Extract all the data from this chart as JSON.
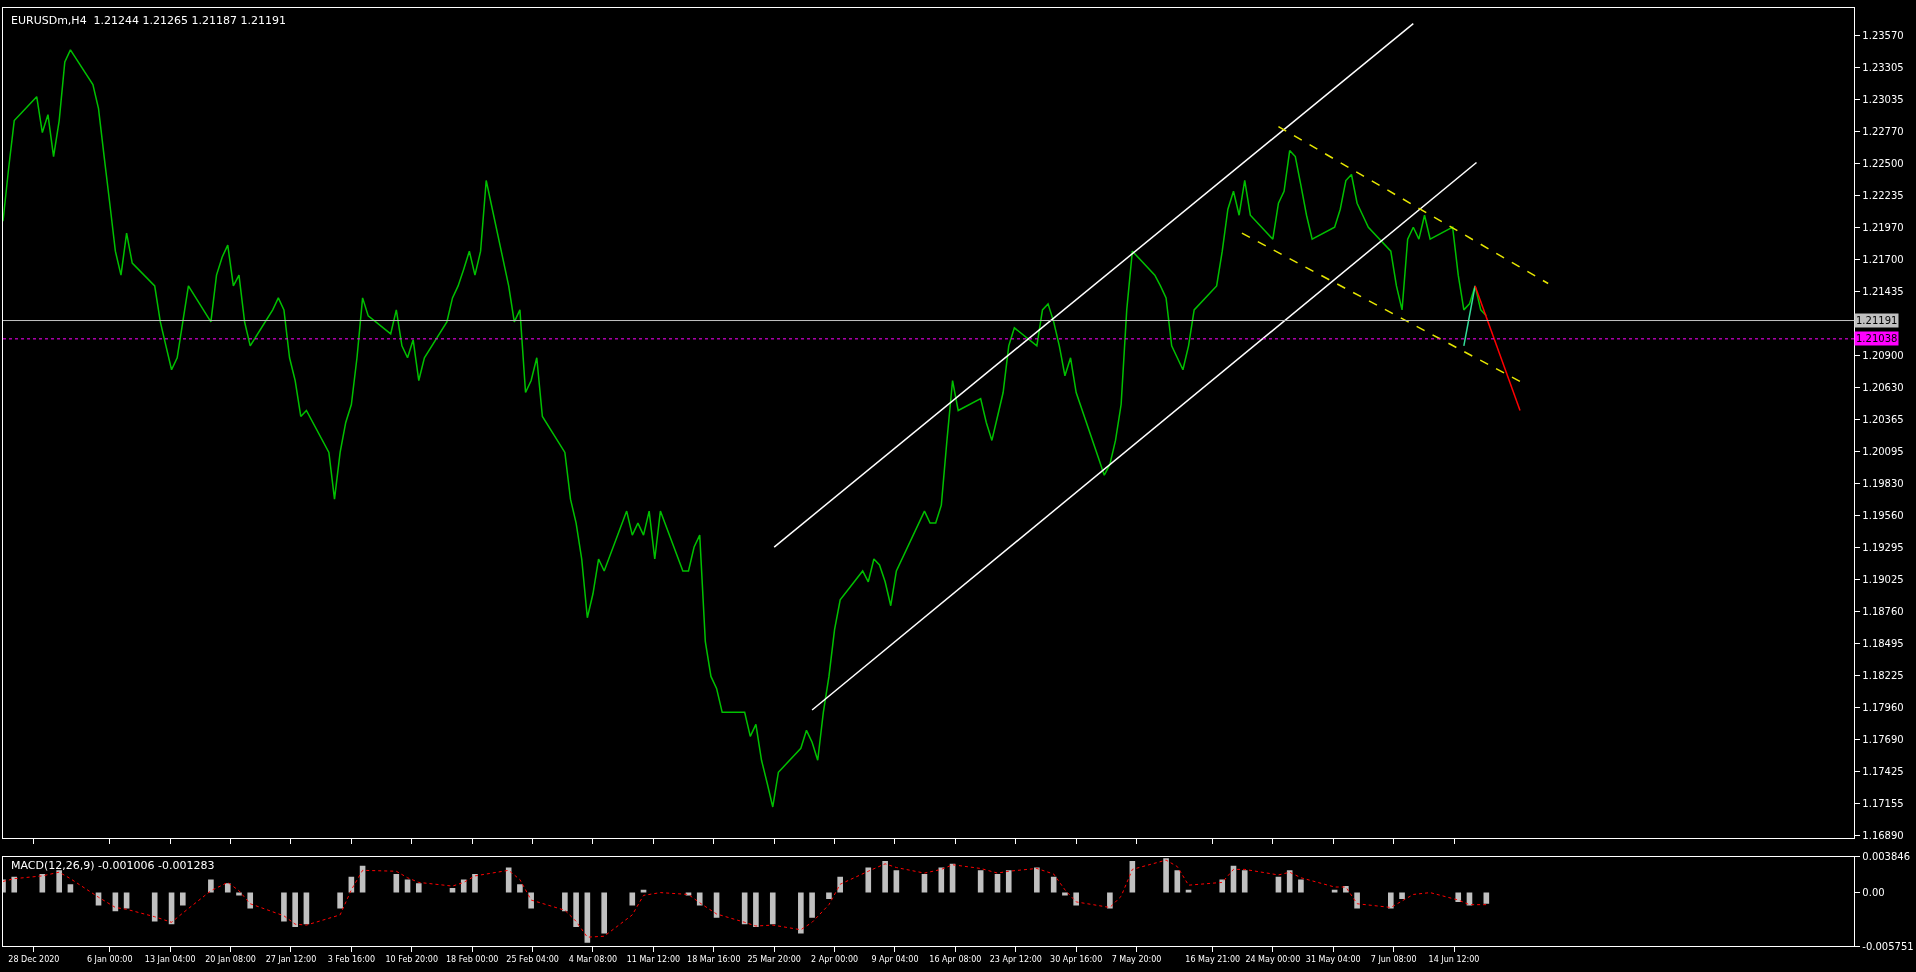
{
  "chart_data": [
    {
      "type": "line",
      "title": "EURUSDm,H4  1.21244 1.21265 1.21187 1.21191",
      "xlim": [
        "2020-12-24T08:00",
        "2021-08-01T00:00"
      ],
      "ylim": [
        1.1687,
        1.238
      ],
      "xticks": [
        {
          "value": "2020-12-28T00:00",
          "label": null
        },
        {
          "value": "2021-01-06T00:00",
          "label": null
        },
        {
          "value": "2021-01-13T04:00",
          "label": null
        },
        {
          "value": "2021-01-20T08:00",
          "label": null
        },
        {
          "value": "2021-01-27T12:00",
          "label": null
        },
        {
          "value": "2021-02-03T16:00",
          "label": null
        },
        {
          "value": "2021-02-10T20:00",
          "label": null
        },
        {
          "value": "2021-02-18T00:00",
          "label": null
        },
        {
          "value": "2021-02-25T04:00",
          "label": null
        },
        {
          "value": "2021-03-04T08:00",
          "label": null
        },
        {
          "value": "2021-03-11T12:00",
          "label": null
        },
        {
          "value": "2021-03-18T16:00",
          "label": null
        },
        {
          "value": "2021-03-25T20:00",
          "label": null
        },
        {
          "value": "2021-04-02T00:00",
          "label": null
        },
        {
          "value": "2021-04-09T04:00",
          "label": null
        },
        {
          "value": "2021-04-16T08:00",
          "label": null
        },
        {
          "value": "2021-04-23T12:00",
          "label": null
        },
        {
          "value": "2021-04-30T16:00",
          "label": null
        },
        {
          "value": "2021-05-07T20:00",
          "label": null
        },
        {
          "value": "2021-05-16T21:00",
          "label": null
        },
        {
          "value": "2021-05-24T00:00",
          "label": null
        },
        {
          "value": "2021-05-31T04:00",
          "label": null
        },
        {
          "value": "2021-06-07T08:00",
          "label": null
        },
        {
          "value": "2021-06-14T12:00",
          "label": null
        }
      ],
      "yticks": [
        {
          "value": 1.1689,
          "label": "1.16890"
        },
        {
          "value": 1.17155,
          "label": "1.17155"
        },
        {
          "value": 1.17425,
          "label": "1.17425"
        },
        {
          "value": 1.1769,
          "label": "1.17690"
        },
        {
          "value": 1.1796,
          "label": "1.17960"
        },
        {
          "value": 1.18225,
          "label": "1.18225"
        },
        {
          "value": 1.18495,
          "label": "1.18495"
        },
        {
          "value": 1.1876,
          "label": "1.18760"
        },
        {
          "value": 1.19025,
          "label": "1.19025"
        },
        {
          "value": 1.19295,
          "label": "1.19295"
        },
        {
          "value": 1.1956,
          "label": "1.19560"
        },
        {
          "value": 1.1983,
          "label": "1.19830"
        },
        {
          "value": 1.20095,
          "label": "1.20095"
        },
        {
          "value": 1.20365,
          "label": "1.20365"
        },
        {
          "value": 1.2063,
          "label": "1.20630"
        },
        {
          "value": 1.209,
          "label": "1.20900"
        },
        {
          "value": 1.21435,
          "label": "1.21435"
        },
        {
          "value": 1.217,
          "label": "1.21700"
        },
        {
          "value": 1.2197,
          "label": "1.21970"
        },
        {
          "value": 1.22235,
          "label": "1.22235"
        },
        {
          "value": 1.225,
          "label": "1.22500"
        },
        {
          "value": 1.2277,
          "label": "1.22770"
        },
        {
          "value": 1.23035,
          "label": "1.23035"
        },
        {
          "value": 1.23305,
          "label": "1.23305"
        },
        {
          "value": 1.2357,
          "label": "1.23570"
        }
      ],
      "tick_labels": "y",
      "grid": false,
      "series": [
        {
          "color": "#00c000",
          "line_style": "solid",
          "x": [
            "2020-12-24T08:00",
            "2020-12-25T00:00",
            "2020-12-25T16:00",
            "2020-12-28T08:00",
            "2020-12-29T00:00",
            "2020-12-29T16:00",
            "2020-12-30T08:00",
            "2020-12-31T00:00",
            "2020-12-31T16:00",
            "2021-01-01T08:00",
            "2021-01-04T00:00",
            "2021-01-04T16:00",
            "2021-01-05T08:00",
            "2021-01-06T00:00",
            "2021-01-06T16:00",
            "2021-01-07T08:00",
            "2021-01-08T00:00",
            "2021-01-08T16:00",
            "2021-01-11T08:00",
            "2021-01-12T00:00",
            "2021-01-12T16:00",
            "2021-01-13T08:00",
            "2021-01-14T00:00",
            "2021-01-14T16:00",
            "2021-01-15T08:00",
            "2021-01-18T00:00",
            "2021-01-18T16:00",
            "2021-01-19T08:00",
            "2021-01-20T00:00",
            "2021-01-20T16:00",
            "2021-01-21T08:00",
            "2021-01-22T00:00",
            "2021-01-22T16:00",
            "2021-01-25T08:00",
            "2021-01-26T00:00",
            "2021-01-26T16:00",
            "2021-01-27T08:00",
            "2021-01-28T00:00",
            "2021-01-28T16:00",
            "2021-01-29T08:00",
            "2021-02-01T00:00",
            "2021-02-01T16:00",
            "2021-02-02T08:00",
            "2021-02-03T00:00",
            "2021-02-03T16:00",
            "2021-02-04T08:00",
            "2021-02-05T00:00",
            "2021-02-05T16:00",
            "2021-02-08T08:00",
            "2021-02-09T00:00",
            "2021-02-09T16:00",
            "2021-02-10T08:00",
            "2021-02-11T00:00",
            "2021-02-11T16:00",
            "2021-02-12T08:00",
            "2021-02-15T00:00",
            "2021-02-15T16:00",
            "2021-02-16T08:00",
            "2021-02-17T00:00",
            "2021-02-17T16:00",
            "2021-02-18T08:00",
            "2021-02-19T00:00",
            "2021-02-19T16:00",
            "2021-02-22T08:00",
            "2021-02-23T00:00",
            "2021-02-23T16:00",
            "2021-02-24T08:00",
            "2021-02-25T00:00",
            "2021-02-25T16:00",
            "2021-02-26T08:00",
            "2021-03-01T00:00",
            "2021-03-01T16:00",
            "2021-03-02T08:00",
            "2021-03-03T00:00",
            "2021-03-03T16:00",
            "2021-03-04T08:00",
            "2021-03-05T00:00",
            "2021-03-05T16:00",
            "2021-03-08T08:00",
            "2021-03-09T00:00",
            "2021-03-09T16:00",
            "2021-03-10T08:00",
            "2021-03-11T00:00",
            "2021-03-11T16:00",
            "2021-03-12T08:00",
            "2021-03-15T00:00",
            "2021-03-15T16:00",
            "2021-03-16T08:00",
            "2021-03-17T00:00",
            "2021-03-17T16:00",
            "2021-03-18T08:00",
            "2021-03-19T00:00",
            "2021-03-19T16:00",
            "2021-03-22T08:00",
            "2021-03-23T00:00",
            "2021-03-23T16:00",
            "2021-03-24T08:00",
            "2021-03-25T00:00",
            "2021-03-25T16:00",
            "2021-03-26T08:00",
            "2021-03-29T00:00",
            "2021-03-29T16:00",
            "2021-03-30T08:00",
            "2021-03-31T00:00",
            "2021-03-31T16:00",
            "2021-04-01T08:00",
            "2021-04-02T00:00",
            "2021-04-02T16:00",
            "2021-04-05T08:00",
            "2021-04-06T00:00",
            "2021-04-06T16:00",
            "2021-04-07T08:00",
            "2021-04-08T00:00",
            "2021-04-08T16:00",
            "2021-04-09T08:00",
            "2021-04-12T00:00",
            "2021-04-12T16:00",
            "2021-04-13T08:00",
            "2021-04-14T00:00",
            "2021-04-14T16:00",
            "2021-04-15T08:00",
            "2021-04-16T00:00",
            "2021-04-16T16:00",
            "2021-04-19T08:00",
            "2021-04-20T00:00",
            "2021-04-20T16:00",
            "2021-04-21T08:00",
            "2021-04-22T00:00",
            "2021-04-22T16:00",
            "2021-04-23T08:00",
            "2021-04-26T00:00",
            "2021-04-26T16:00",
            "2021-04-27T08:00",
            "2021-04-28T00:00",
            "2021-04-28T16:00",
            "2021-04-29T08:00",
            "2021-04-30T00:00",
            "2021-04-30T16:00",
            "2021-05-03T08:00",
            "2021-05-04T00:00",
            "2021-05-04T16:00",
            "2021-05-05T08:00",
            "2021-05-06T00:00",
            "2021-05-06T16:00",
            "2021-05-07T08:00",
            "2021-05-10T00:00",
            "2021-05-10T16:00",
            "2021-05-11T08:00",
            "2021-05-12T00:00",
            "2021-05-12T16:00",
            "2021-05-13T08:00",
            "2021-05-14T00:00",
            "2021-05-14T16:00",
            "2021-05-17T08:00",
            "2021-05-18T00:00",
            "2021-05-18T16:00",
            "2021-05-19T08:00",
            "2021-05-20T00:00",
            "2021-05-20T16:00",
            "2021-05-21T08:00",
            "2021-05-24T00:00",
            "2021-05-24T16:00",
            "2021-05-25T08:00",
            "2021-05-26T00:00",
            "2021-05-26T16:00",
            "2021-05-27T08:00",
            "2021-05-28T00:00",
            "2021-05-28T16:00",
            "2021-05-31T08:00",
            "2021-06-01T00:00",
            "2021-06-01T16:00",
            "2021-06-02T08:00",
            "2021-06-03T00:00",
            "2021-06-03T16:00",
            "2021-06-04T08:00",
            "2021-06-07T00:00",
            "2021-06-07T16:00",
            "2021-06-08T08:00",
            "2021-06-09T00:00",
            "2021-06-09T16:00",
            "2021-06-10T08:00",
            "2021-06-11T00:00",
            "2021-06-11T16:00",
            "2021-06-14T08:00",
            "2021-06-15T00:00",
            "2021-06-15T16:00",
            "2021-06-16T08:00",
            "2021-06-17T00:00",
            "2021-06-17T16:00",
            "2021-06-18T08:00"
          ],
          "values": [
            1.2202,
            1.2246,
            1.2286,
            1.2306,
            1.2276,
            1.2291,
            1.2256,
            1.2286,
            1.2335,
            1.2345,
            1.2316,
            1.2296,
            1.2256,
            1.2217,
            1.2177,
            1.2157,
            1.2192,
            1.2167,
            1.2148,
            1.2118,
            1.2098,
            1.2078,
            1.2088,
            1.2118,
            1.2148,
            1.2118,
            1.2157,
            1.2172,
            1.2182,
            1.2148,
            1.2157,
            1.2118,
            1.2098,
            1.2128,
            1.2138,
            1.2128,
            1.2088,
            1.2069,
            1.2039,
            1.2044,
            1.2009,
            1.197,
            1.2009,
            1.2034,
            1.2049,
            1.2088,
            1.2138,
            1.2123,
            1.2108,
            1.2128,
            1.2098,
            1.2088,
            1.2103,
            1.2069,
            1.2088,
            1.2118,
            1.2138,
            1.2148,
            1.2162,
            1.2177,
            1.2157,
            1.2177,
            1.2236,
            1.2148,
            1.2118,
            1.2128,
            1.2059,
            1.2069,
            1.2088,
            1.2039,
            1.2009,
            1.197,
            1.195,
            1.192,
            1.1871,
            1.1891,
            1.192,
            1.191,
            1.196,
            1.194,
            1.195,
            1.194,
            1.196,
            1.192,
            1.196,
            1.191,
            1.191,
            1.193,
            1.194,
            1.1851,
            1.1822,
            1.1812,
            1.1792,
            1.1792,
            1.1772,
            1.1782,
            1.1752,
            1.1733,
            1.1713,
            1.1742,
            1.1762,
            1.1777,
            1.1767,
            1.1752,
            1.1792,
            1.1822,
            1.1861,
            1.1886,
            1.191,
            1.1901,
            1.192,
            1.1915,
            1.1901,
            1.1881,
            1.191,
            1.195,
            1.196,
            1.195,
            1.195,
            1.1965,
            1.2019,
            1.2069,
            1.2044,
            1.2054,
            1.2034,
            1.2019,
            1.2039,
            1.2059,
            1.2098,
            1.2113,
            1.2098,
            1.2128,
            1.2133,
            1.2118,
            1.2098,
            1.2073,
            1.2088,
            1.2059,
            1.2004,
            1.199,
            1.1999,
            1.2019,
            1.2049,
            1.2128,
            1.2177,
            1.2157,
            1.2148,
            1.2138,
            1.2098,
            1.2088,
            1.2078,
            1.2098,
            1.2128,
            1.2148,
            1.2177,
            1.2212,
            1.2227,
            1.2207,
            1.2236,
            1.2207,
            1.2187,
            1.2217,
            1.2227,
            1.2261,
            1.2256,
            1.2232,
            1.2207,
            1.2187,
            1.2197,
            1.2212,
            1.2236,
            1.2241,
            1.2217,
            1.2207,
            1.2197,
            1.2177,
            1.2148,
            1.2128,
            1.2187,
            1.2197,
            1.2187,
            1.2207,
            1.2187,
            1.2197,
            1.2157,
            1.2128,
            1.2133,
            1.2148,
            1.2128,
            1.2123
          ]
        },
        {
          "color": "#ffffff",
          "line_style": "solid",
          "x": [
            "2021-03-25T20:00",
            "2021-06-09T16:00"
          ],
          "values": [
            1.193,
            1.2367
          ]
        },
        {
          "color": "#ffffff",
          "line_style": "solid",
          "x": [
            "2021-03-30T08:00",
            "2021-06-17T04:00"
          ],
          "values": [
            1.1794,
            1.2251
          ]
        },
        {
          "color": "#e6e600",
          "line_style": "dashed",
          "x": [
            "2021-05-24T16:00",
            "2021-06-25T16:00"
          ],
          "values": [
            1.2281,
            1.215
          ]
        },
        {
          "color": "#e6e600",
          "line_style": "dashed",
          "x": [
            "2021-05-20T08:00",
            "2021-06-22T16:00"
          ],
          "values": [
            1.2192,
            1.2067
          ]
        },
        {
          "color": "#33dd99",
          "line_style": "solid",
          "x": [
            "2021-06-15T16:00",
            "2021-06-17T00:00"
          ],
          "values": [
            1.2098,
            1.2148
          ]
        },
        {
          "color": "#ff0000",
          "line_style": "solid",
          "x": [
            "2021-06-17T00:00",
            "2021-06-22T08:00"
          ],
          "values": [
            1.2148,
            1.2044
          ]
        }
      ],
      "ref_lines": [
        {
          "axis": "y",
          "value": 1.21191,
          "label": "1.21191",
          "color": "#c0c0c0",
          "line_style": "solid"
        },
        {
          "axis": "y",
          "value": 1.21038,
          "label": "1.21038",
          "color": "#ff00ff",
          "line_style": "dotted"
        }
      ]
    },
    {
      "type": "bar",
      "title": "MACD(12,26,9) -0.001006 -0.001283",
      "xlim": [
        "2020-12-24T08:00",
        "2021-08-01T00:00"
      ],
      "ylim": [
        -0.005751,
        0.003846
      ],
      "yticks": [
        -0.005751,
        {
          "value": 0,
          "label": "0.00"
        },
        0.003846
      ],
      "xticks": [
        {
          "value": "2020-12-28T00:00",
          "label": "28 Dec 2020"
        },
        {
          "value": "2021-01-06T00:00",
          "label": "6 Jan 00:00"
        },
        {
          "value": "2021-01-13T04:00",
          "label": "13 Jan 04:00"
        },
        {
          "value": "2021-01-20T08:00",
          "label": "20 Jan 08:00"
        },
        {
          "value": "2021-01-27T12:00",
          "label": "27 Jan 12:00"
        },
        {
          "value": "2021-02-03T16:00",
          "label": "3 Feb 16:00"
        },
        {
          "value": "2021-02-10T20:00",
          "label": "10 Feb 20:00"
        },
        {
          "value": "2021-02-18T00:00",
          "label": "18 Feb 00:00"
        },
        {
          "value": "2021-02-25T04:00",
          "label": "25 Feb 04:00"
        },
        {
          "value": "2021-03-04T08:00",
          "label": "4 Mar 08:00"
        },
        {
          "value": "2021-03-11T12:00",
          "label": "11 Mar 12:00"
        },
        {
          "value": "2021-03-18T16:00",
          "label": "18 Mar 16:00"
        },
        {
          "value": "2021-03-25T20:00",
          "label": "25 Mar 20:00"
        },
        {
          "value": "2021-04-02T00:00",
          "label": "2 Apr 00:00"
        },
        {
          "value": "2021-04-09T04:00",
          "label": "9 Apr 04:00"
        },
        {
          "value": "2021-04-16T08:00",
          "label": "16 Apr 08:00"
        },
        {
          "value": "2021-04-23T12:00",
          "label": "23 Apr 12:00"
        },
        {
          "value": "2021-04-30T16:00",
          "label": "30 Apr 16:00"
        },
        {
          "value": "2021-05-07T20:00",
          "label": "7 May 20:00"
        },
        {
          "value": "2021-05-16T21:00",
          "label": "16 May 21:00"
        },
        {
          "value": "2021-05-24T00:00",
          "label": "24 May 00:00"
        },
        {
          "value": "2021-05-31T04:00",
          "label": "31 May 04:00"
        },
        {
          "value": "2021-06-07T08:00",
          "label": "7 Jun 08:00"
        },
        {
          "value": "2021-06-14T12:00",
          "label": "14 Jun 12:00"
        }
      ],
      "grid": false,
      "x": [
        "2020-12-24T08:00",
        "2020-12-25T16:00",
        "2020-12-29T00:00",
        "2020-12-31T00:00",
        "2021-01-01T08:00",
        "2021-01-04T16:00",
        "2021-01-06T16:00",
        "2021-01-08T00:00",
        "2021-01-11T08:00",
        "2021-01-13T08:00",
        "2021-01-14T16:00",
        "2021-01-18T00:00",
        "2021-01-20T00:00",
        "2021-01-21T08:00",
        "2021-01-22T16:00",
        "2021-01-26T16:00",
        "2021-01-28T00:00",
        "2021-01-29T08:00",
        "2021-02-02T08:00",
        "2021-02-03T16:00",
        "2021-02-05T00:00",
        "2021-02-09T00:00",
        "2021-02-10T08:00",
        "2021-02-11T16:00",
        "2021-02-15T16:00",
        "2021-02-17T00:00",
        "2021-02-18T08:00",
        "2021-02-22T08:00",
        "2021-02-23T16:00",
        "2021-02-25T00:00",
        "2021-03-01T00:00",
        "2021-03-02T08:00",
        "2021-03-03T16:00",
        "2021-03-05T16:00",
        "2021-03-09T00:00",
        "2021-03-10T08:00",
        "2021-03-12T08:00",
        "2021-03-15T16:00",
        "2021-03-17T00:00",
        "2021-03-19T00:00",
        "2021-03-22T08:00",
        "2021-03-23T16:00",
        "2021-03-25T16:00",
        "2021-03-29T00:00",
        "2021-03-30T08:00",
        "2021-04-01T08:00",
        "2021-04-02T16:00",
        "2021-04-06T00:00",
        "2021-04-08T00:00",
        "2021-04-09T08:00",
        "2021-04-12T16:00",
        "2021-04-14T16:00",
        "2021-04-16T00:00",
        "2021-04-19T08:00",
        "2021-04-21T08:00",
        "2021-04-22T16:00",
        "2021-04-26T00:00",
        "2021-04-28T00:00",
        "2021-04-29T08:00",
        "2021-04-30T16:00",
        "2021-05-04T16:00",
        "2021-05-06T00:00",
        "2021-05-07T08:00",
        "2021-05-11T08:00",
        "2021-05-12T16:00",
        "2021-05-14T00:00",
        "2021-05-18T00:00",
        "2021-05-19T08:00",
        "2021-05-20T16:00",
        "2021-05-24T16:00",
        "2021-05-26T00:00",
        "2021-05-27T08:00",
        "2021-05-31T08:00",
        "2021-06-01T16:00",
        "2021-06-03T00:00",
        "2021-06-07T00:00",
        "2021-06-08T08:00",
        "2021-06-09T16:00",
        "2021-06-11T16:00",
        "2021-06-15T00:00",
        "2021-06-16T08:00",
        "2021-06-18T08:00"
      ],
      "series": [
        {
          "type": "bar",
          "color": "#c0c0c0",
          "values": [
            0.0014,
            0.0017,
            0.002,
            0.0024,
            0.0009,
            -0.0014,
            -0.002,
            -0.0017,
            -0.0031,
            -0.0034,
            -0.0014,
            0.0014,
            0.001,
            -0.0003,
            -0.0017,
            -0.0031,
            -0.0037,
            -0.0034,
            -0.0017,
            0.0017,
            0.0029,
            0.002,
            0.0014,
            0.001,
            0.0005,
            0.0014,
            0.002,
            0.0027,
            0.0009,
            -0.0017,
            -0.002,
            -0.0037,
            -0.0054,
            -0.0044,
            -0.0014,
            0.0003,
            0,
            -0.0003,
            -0.0014,
            -0.0027,
            -0.0034,
            -0.0037,
            -0.0034,
            -0.0044,
            -0.0027,
            -0.0007,
            0.0017,
            0.0027,
            0.0034,
            0.0024,
            0.002,
            0.0027,
            0.0031,
            0.0024,
            0.002,
            0.0024,
            0.0027,
            0.0017,
            -0.0003,
            -0.0014,
            -0.0017,
            0,
            0.0034,
            0.0037,
            0.0024,
            0.0003,
            0.0014,
            0.0029,
            0.0024,
            0.0017,
            0.0024,
            0.0014,
            0.0003,
            0.0007,
            -0.0017,
            -0.0017,
            -0.0007,
            0,
            0,
            -0.001,
            -0.0014,
            -0.0012
          ]
        },
        {
          "type": "line",
          "color": "#ff0000",
          "line_style": "dotted",
          "values": [
            0.0012,
            0.0015,
            0.0018,
            0.0022,
            0.0015,
            -0.0005,
            -0.0016,
            -0.0018,
            -0.0026,
            -0.0032,
            -0.0022,
            0.0002,
            0.0011,
            0.0002,
            -0.0012,
            -0.0025,
            -0.0034,
            -0.0035,
            -0.0024,
            0.0003,
            0.0024,
            0.0023,
            0.0016,
            0.0011,
            0.0007,
            0.0011,
            0.0018,
            0.0024,
            0.0014,
            -0.0008,
            -0.0019,
            -0.0031,
            -0.0048,
            -0.0047,
            -0.0024,
            -0.0003,
            0,
            -0.0002,
            -0.0011,
            -0.0023,
            -0.0032,
            -0.0036,
            -0.0035,
            -0.004,
            -0.0032,
            -0.0013,
            0.0009,
            0.0023,
            0.0031,
            0.0027,
            0.0021,
            0.0025,
            0.003,
            0.0026,
            0.0021,
            0.0023,
            0.0026,
            0.002,
            0.0003,
            -0.001,
            -0.0016,
            -0.0004,
            0.0025,
            0.0035,
            0.0028,
            0.0008,
            0.0011,
            0.0025,
            0.0025,
            0.0019,
            0.0022,
            0.0016,
            0.0006,
            0.0006,
            -0.0012,
            -0.0016,
            -0.0009,
            -0.0002,
            0,
            -0.0008,
            -0.0013,
            -0.0013
          ]
        }
      ]
    }
  ]
}
